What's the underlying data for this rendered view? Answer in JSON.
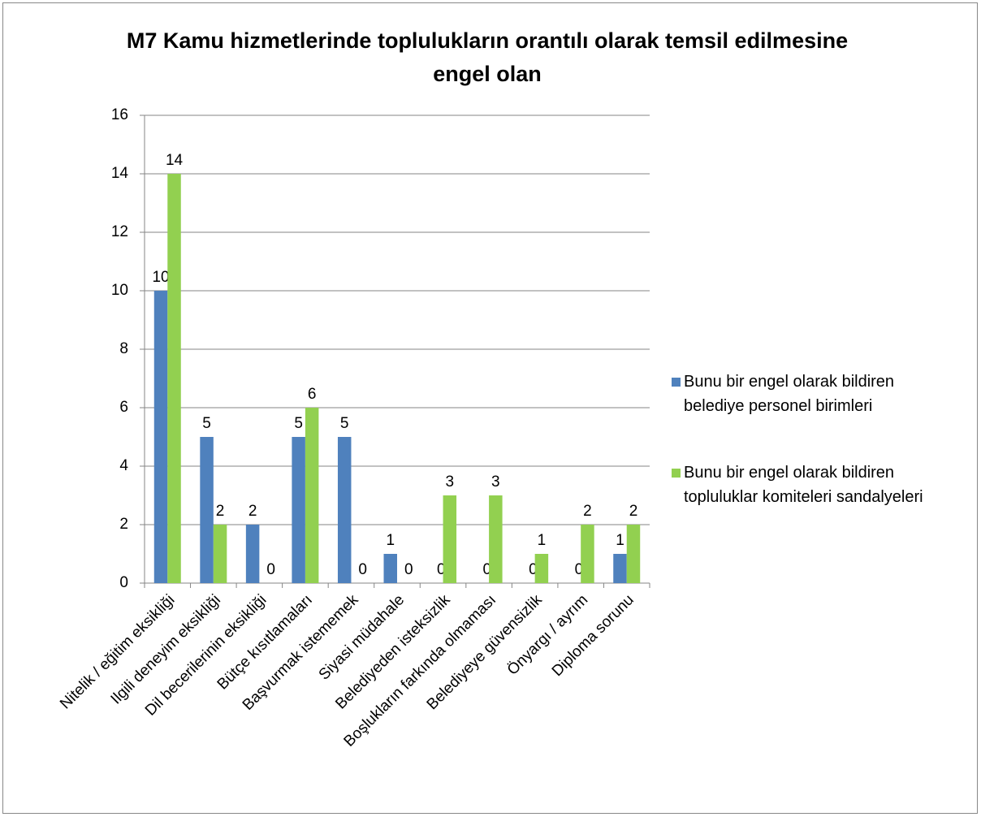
{
  "chart_data": {
    "type": "bar",
    "title": "M7 Kamu hizmetlerinde toplulukların orantılı olarak temsil edilmesine engel olan",
    "categories": [
      "Nitelik / eğitim eksikliği",
      "Ilgili deneyim eksikliği",
      "Dil becerilerinin eksikliği",
      "Bütçe kısıtlamaları",
      "Başvurmak istememek",
      "Siyasi müdahale",
      "Belediyeden isteksizlik",
      "Boşlukların farkında olmaması",
      "Belediyeye güvensizlik",
      "Önyargı / ayrım",
      "Diploma sorunu"
    ],
    "series": [
      {
        "name": "Bunu bir engel olarak bildiren belediye personel birimleri",
        "color": "#4f81bd",
        "values": [
          10,
          5,
          2,
          5,
          5,
          1,
          0,
          0,
          0,
          0,
          1
        ]
      },
      {
        "name": "Bunu bir engel olarak bildiren topluluklar komiteleri sandalyeleri",
        "color": "#92d050",
        "values": [
          14,
          2,
          0,
          6,
          0,
          0,
          3,
          3,
          1,
          2,
          2
        ]
      }
    ],
    "ylim": [
      0,
      16
    ],
    "yticks": [
      0,
      2,
      4,
      6,
      8,
      10,
      12,
      14,
      16
    ],
    "grid": true,
    "legend": "right"
  }
}
